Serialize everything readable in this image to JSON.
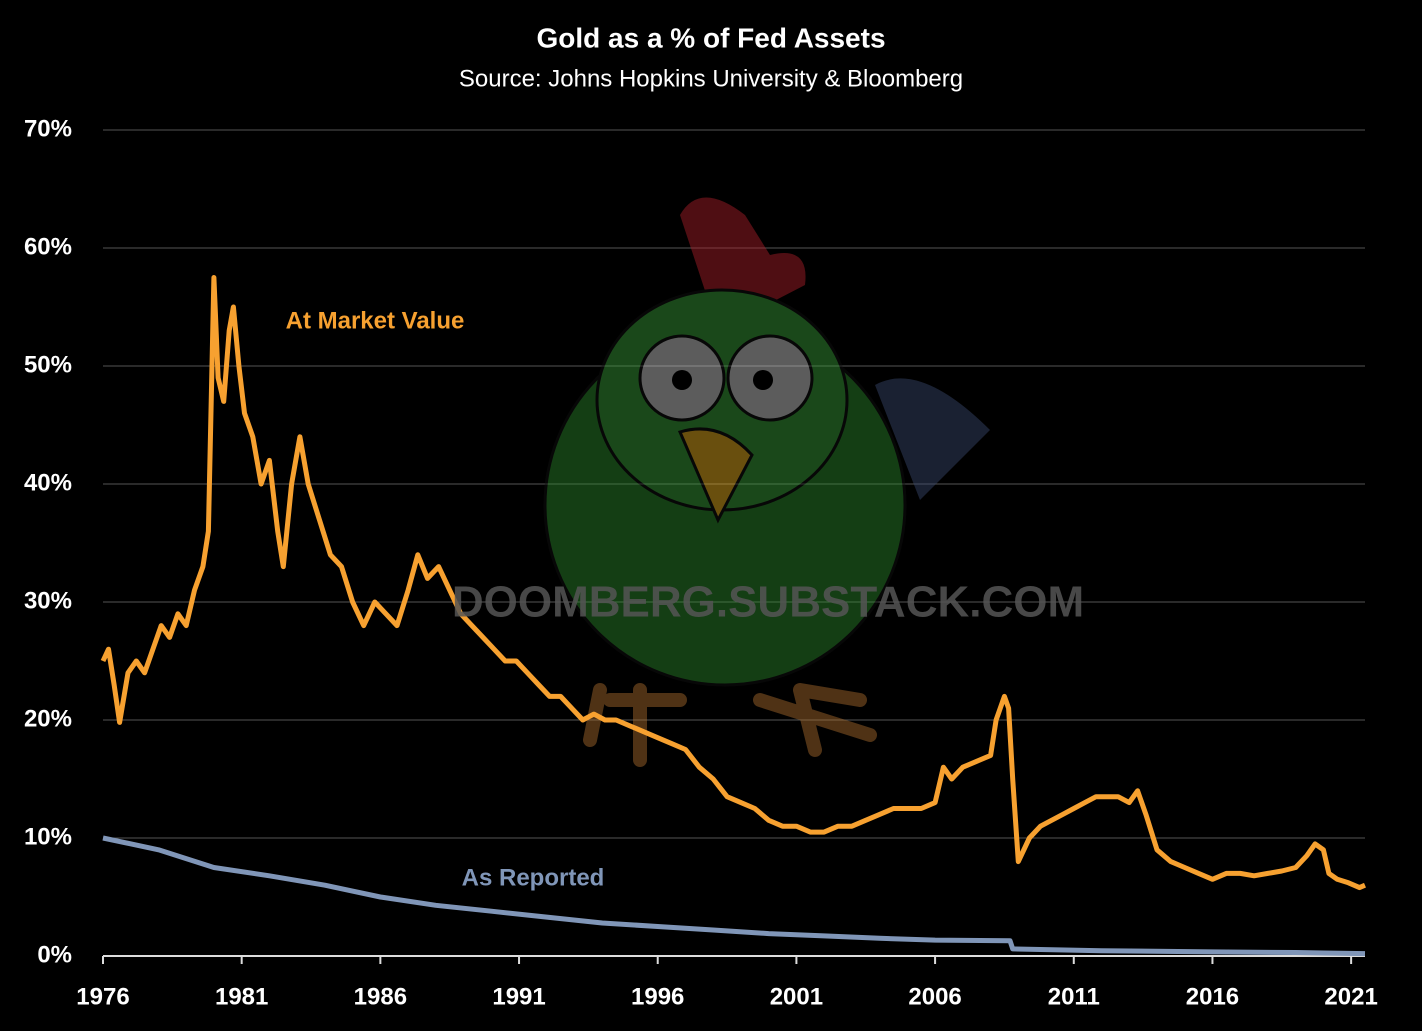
{
  "chart_data": {
    "type": "line",
    "title": "Gold as a % of Fed Assets",
    "subtitle": "Source: Johns Hopkins University & Bloomberg",
    "watermark": "DOOMBERG.SUBSTACK.COM",
    "grid": true,
    "xlim": [
      1976,
      2021.5
    ],
    "xticks": [
      1976,
      1981,
      1986,
      1991,
      1996,
      2001,
      2006,
      2011,
      2016,
      2021
    ],
    "ylim": [
      0,
      70
    ],
    "yticks": [
      {
        "value": 0,
        "label": "0%"
      },
      {
        "value": 10,
        "label": "10%"
      },
      {
        "value": 20,
        "label": "20%"
      },
      {
        "value": 30,
        "label": "30%"
      },
      {
        "value": 40,
        "label": "40%"
      },
      {
        "value": 50,
        "label": "50%"
      },
      {
        "value": 60,
        "label": "60%"
      },
      {
        "value": 70,
        "label": "70%"
      }
    ],
    "series": [
      {
        "name": "At Market Value",
        "color": "#f7a130",
        "x": [
          1976.0,
          1976.2,
          1976.4,
          1976.6,
          1976.9,
          1977.2,
          1977.5,
          1977.8,
          1978.1,
          1978.4,
          1978.7,
          1979.0,
          1979.3,
          1979.6,
          1979.8,
          1980.0,
          1980.15,
          1980.35,
          1980.55,
          1980.7,
          1980.9,
          1981.1,
          1981.4,
          1981.7,
          1982.0,
          1982.3,
          1982.5,
          1982.8,
          1983.1,
          1983.4,
          1983.8,
          1984.2,
          1984.6,
          1985.0,
          1985.4,
          1985.8,
          1986.2,
          1986.6,
          1987.0,
          1987.35,
          1987.7,
          1988.1,
          1988.5,
          1988.9,
          1989.3,
          1989.7,
          1990.1,
          1990.5,
          1990.9,
          1991.3,
          1991.7,
          1992.1,
          1992.5,
          1992.9,
          1993.3,
          1993.7,
          1994.1,
          1994.5,
          1995.0,
          1995.5,
          1996.0,
          1996.5,
          1997.0,
          1997.5,
          1998.0,
          1998.5,
          1999.0,
          1999.5,
          2000.0,
          2000.5,
          2001.0,
          2001.5,
          2002.0,
          2002.5,
          2003.0,
          2003.5,
          2004.0,
          2004.5,
          2005.0,
          2005.5,
          2006.0,
          2006.3,
          2006.6,
          2007.0,
          2007.5,
          2008.0,
          2008.2,
          2008.5,
          2008.65,
          2008.8,
          2009.0,
          2009.4,
          2009.8,
          2010.2,
          2010.6,
          2011.0,
          2011.4,
          2011.8,
          2012.2,
          2012.6,
          2013.0,
          2013.3,
          2013.6,
          2014.0,
          2014.5,
          2015.0,
          2015.5,
          2016.0,
          2016.5,
          2017.0,
          2017.5,
          2018.0,
          2018.5,
          2019.0,
          2019.4,
          2019.7,
          2020.0,
          2020.2,
          2020.5,
          2020.9,
          2021.3,
          2021.5
        ],
        "values": [
          25,
          26,
          23,
          19.8,
          24,
          25,
          24,
          26,
          28,
          27,
          29,
          28,
          31,
          33,
          36,
          57.5,
          49,
          47,
          53,
          55,
          50,
          46,
          44,
          40,
          42,
          36,
          33,
          40,
          44,
          40,
          37,
          34,
          33,
          30,
          28,
          30,
          29,
          28,
          31,
          34,
          32,
          33,
          31,
          29,
          28,
          27,
          26,
          25,
          25,
          24,
          23,
          22,
          22,
          21,
          20,
          20.5,
          20,
          20,
          19.5,
          19,
          18.5,
          18,
          17.5,
          16,
          15,
          13.5,
          13,
          12.5,
          11.5,
          11,
          11,
          10.5,
          10.5,
          11,
          11,
          11.5,
          12,
          12.5,
          12.5,
          12.5,
          13,
          16,
          15,
          16,
          16.5,
          17,
          20,
          22,
          21,
          15,
          8,
          10,
          11,
          11.5,
          12,
          12.5,
          13,
          13.5,
          13.5,
          13.5,
          13,
          14,
          12,
          9,
          8,
          7.5,
          7,
          6.5,
          7,
          7,
          6.8,
          7,
          7.2,
          7.5,
          8.5,
          9.5,
          9,
          7,
          6.5,
          6.2,
          5.8,
          6
        ]
      },
      {
        "name": "As Reported",
        "color": "#8096b8",
        "x": [
          1976,
          1978,
          1980,
          1982,
          1984,
          1986,
          1988,
          1990,
          1992,
          1994,
          1996,
          1998,
          2000,
          2002,
          2004,
          2006,
          2008.7,
          2008.8,
          2012,
          2016,
          2019,
          2020,
          2021.5
        ],
        "values": [
          10,
          9,
          7.5,
          6.8,
          6,
          5,
          4.3,
          3.8,
          3.3,
          2.8,
          2.5,
          2.2,
          1.9,
          1.7,
          1.5,
          1.35,
          1.3,
          0.6,
          0.45,
          0.35,
          0.3,
          0.25,
          0.2
        ]
      }
    ]
  }
}
